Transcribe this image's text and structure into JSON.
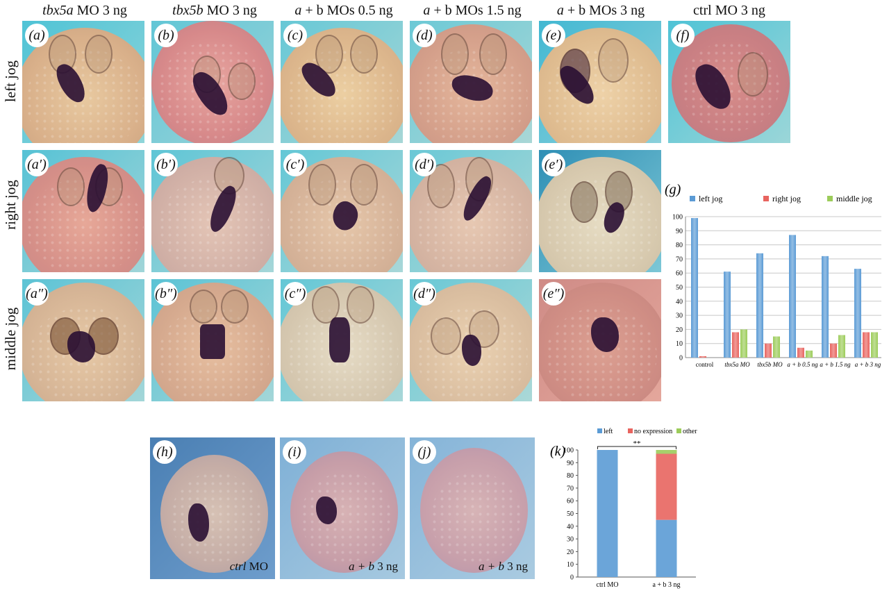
{
  "column_headers": [
    {
      "italic": "tbx5a",
      "rest": " MO 3 ng"
    },
    {
      "italic": "tbx5b",
      "rest": " MO 3 ng"
    },
    {
      "italic": "a",
      "rest": " + b MOs 0.5 ng"
    },
    {
      "italic": "a",
      "rest": " + b MOs 1.5 ng"
    },
    {
      "italic": "a",
      "rest": " + b MOs 3 ng"
    },
    {
      "italic": "",
      "rest": "ctrl MO 3 ng"
    }
  ],
  "row_labels": [
    "left jog",
    "right jog",
    "middle jog"
  ],
  "panels_row1": [
    "(a)",
    "(b)",
    "(c)",
    "(d)",
    "(e)",
    "(f)"
  ],
  "panels_row2": [
    "(a′)",
    "(b′)",
    "(c′)",
    "(d′)",
    "(e′)"
  ],
  "panels_row3": [
    "(a″)",
    "(b″)",
    "(c″)",
    "(d″)",
    "(e″)"
  ],
  "panels_bottom": [
    {
      "label": "(h)",
      "caption_italic": "ctrl",
      "caption_rest": " MO"
    },
    {
      "label": "(i)",
      "caption_italic": "a + b",
      "caption_rest": " 3 ng"
    },
    {
      "label": "(j)",
      "caption_italic": "a + b",
      "caption_rest": " 3 ng"
    }
  ],
  "colors": {
    "left": "#5b9bd5",
    "right": "#e8645f",
    "middle": "#9ccc5a",
    "stain": "#2a0f33",
    "background_cyan": "#5fc8d8",
    "background_blue": "#8ab4d8"
  },
  "chart_data": [
    {
      "panel_label": "(g)",
      "type": "bar",
      "categories": [
        "control",
        "tbx5a MO",
        "tbx5b MO",
        "a + b 0.5 ng",
        "a + b 1.5 ng",
        "a + b 3 ng"
      ],
      "series": [
        {
          "name": "left jog",
          "color": "#5b9bd5",
          "values": [
            99,
            61,
            74,
            87,
            72,
            63
          ]
        },
        {
          "name": "right jog",
          "color": "#e8645f",
          "values": [
            1,
            18,
            10,
            7,
            10,
            18
          ]
        },
        {
          "name": "middle jog",
          "color": "#9ccc5a",
          "values": [
            0,
            20,
            15,
            5,
            16,
            18
          ]
        }
      ],
      "yticks": [
        "0",
        "10",
        "20",
        "30",
        "40",
        "50",
        "60",
        "70",
        "80",
        "90",
        "100"
      ],
      "ylim": [
        0,
        100
      ],
      "grid": true,
      "legend_position": "top"
    },
    {
      "panel_label": "(k)",
      "type": "bar",
      "stacked": true,
      "categories": [
        "ctrl MO",
        "a + b 3 ng"
      ],
      "series": [
        {
          "name": "left",
          "color": "#5b9bd5",
          "values": [
            100,
            45
          ]
        },
        {
          "name": "no expression",
          "color": "#e8645f",
          "values": [
            0,
            52
          ]
        },
        {
          "name": "other",
          "color": "#9ccc5a",
          "values": [
            0,
            3
          ]
        }
      ],
      "yticks": [
        "0",
        "10",
        "20",
        "30",
        "40",
        "50",
        "60",
        "70",
        "80",
        "90",
        "100"
      ],
      "ylim": [
        0,
        100
      ],
      "significance": "**",
      "legend_position": "top"
    }
  ]
}
